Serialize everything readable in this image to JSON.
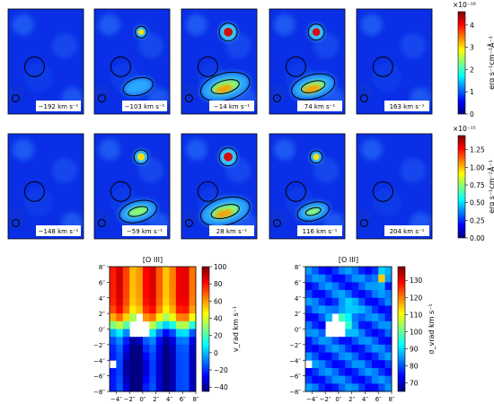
{
  "chart_data": [
    {
      "type": "heatmap",
      "id": "row1_channel_maps",
      "panels": [
        {
          "velocity_label": "−192 km s⁻¹",
          "peaks": []
        },
        {
          "velocity_label": "−103 km s⁻¹",
          "peaks": [
            "upper-source",
            "lower-source"
          ]
        },
        {
          "velocity_label": "−14 km s⁻¹",
          "peaks": [
            "upper-source",
            "lower-source"
          ]
        },
        {
          "velocity_label": "74 km s⁻¹",
          "peaks": [
            "upper-source",
            "lower-source"
          ]
        },
        {
          "velocity_label": "163 km s⁻¹",
          "peaks": []
        }
      ],
      "colorbar": {
        "label": "erg s⁻¹cm⁻²Å⁻¹",
        "scale_label": "×10⁻¹⁶",
        "ticks": [
          "0",
          "1",
          "2",
          "3",
          "4"
        ],
        "range": [
          0,
          4.6
        ],
        "colormap": "jet"
      }
    },
    {
      "type": "heatmap",
      "id": "row2_channel_maps",
      "panels": [
        {
          "velocity_label": "−148 km s⁻¹",
          "peaks": []
        },
        {
          "velocity_label": "−59 km s⁻¹",
          "peaks": [
            "upper-source",
            "lower-source"
          ]
        },
        {
          "velocity_label": "28 km s⁻¹",
          "peaks": [
            "upper-source",
            "lower-source"
          ]
        },
        {
          "velocity_label": "116 km s⁻¹",
          "peaks": [
            "upper-source",
            "lower-source"
          ]
        },
        {
          "velocity_label": "204 km s⁻¹",
          "peaks": []
        }
      ],
      "colorbar": {
        "label": "erg s⁻¹cm⁻²Å⁻¹",
        "scale_label": "×10⁻¹⁵",
        "ticks": [
          "0.00",
          "0.25",
          "0.50",
          "0.75",
          "1.00",
          "1.25"
        ],
        "range": [
          0,
          1.45
        ],
        "colormap": "jet"
      }
    },
    {
      "type": "heatmap",
      "id": "velocity_map",
      "title": "[O III]",
      "xticks": [
        "−4″",
        "−2″",
        "0″",
        "2″",
        "4″",
        "6″",
        "8″"
      ],
      "yticks": [
        "8″",
        "6″",
        "4″",
        "2″",
        "0″",
        "−2″",
        "−4″",
        "−6″",
        "−8″"
      ],
      "xlim": [
        -5,
        8
      ],
      "ylim": [
        -8,
        8
      ],
      "colorbar": {
        "label": "v_rad km s⁻¹",
        "ticks": [
          "100",
          "80",
          "60",
          "40",
          "20",
          "0",
          "−20",
          "−40"
        ],
        "range": [
          -45,
          100
        ],
        "colormap": "jet"
      }
    },
    {
      "type": "heatmap",
      "id": "dispersion_map",
      "title": "[O III]",
      "xticks": [
        "−4″",
        "−2″",
        "0″",
        "2″",
        "4″",
        "6″",
        "8″"
      ],
      "yticks": [
        "8″",
        "6″",
        "4″",
        "2″",
        "0″",
        "−2″",
        "−4″",
        "−6″",
        "−8″"
      ],
      "xlim": [
        -5,
        8
      ],
      "ylim": [
        -8,
        8
      ],
      "colorbar": {
        "label": "σ_vrad km s⁻¹",
        "ticks": [
          "130",
          "120",
          "110",
          "100",
          "90",
          "80",
          "70"
        ],
        "range": [
          65,
          138
        ],
        "colormap": "jet"
      }
    }
  ]
}
